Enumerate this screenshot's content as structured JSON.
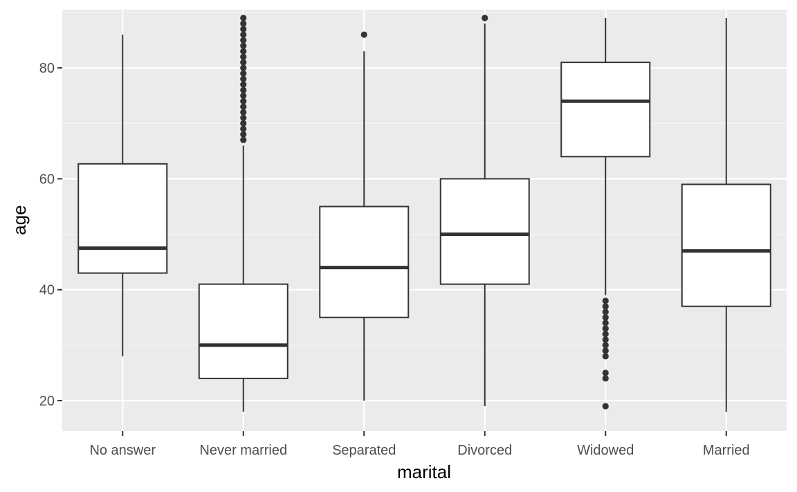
{
  "chart_data": {
    "type": "box",
    "xlabel": "marital",
    "ylabel": "age",
    "ylim": [
      14.5,
      90.5
    ],
    "yticks": [
      20,
      40,
      60,
      80
    ],
    "ytick_labels": [
      "20",
      "40",
      "60",
      "80"
    ],
    "grid": true,
    "categories": [
      "No answer",
      "Never married",
      "Separated",
      "Divorced",
      "Widowed",
      "Married"
    ],
    "boxes": [
      {
        "category": "No answer",
        "whisker_low": 28,
        "q1": 43,
        "median": 47.5,
        "q3": 62.7,
        "whisker_high": 86,
        "outliers": []
      },
      {
        "category": "Never married",
        "whisker_low": 18,
        "q1": 24,
        "median": 30,
        "q3": 41,
        "whisker_high": 66,
        "outliers": [
          67,
          68,
          69,
          70,
          71,
          72,
          73,
          74,
          75,
          76,
          77,
          78,
          79,
          80,
          81,
          82,
          83,
          84,
          85,
          86,
          87,
          88,
          89
        ]
      },
      {
        "category": "Separated",
        "whisker_low": 20,
        "q1": 35,
        "median": 44,
        "q3": 55,
        "whisker_high": 83,
        "outliers": [
          86
        ]
      },
      {
        "category": "Divorced",
        "whisker_low": 19,
        "q1": 41,
        "median": 50,
        "q3": 60,
        "whisker_high": 88,
        "outliers": [
          89
        ]
      },
      {
        "category": "Widowed",
        "whisker_low": 39,
        "q1": 64,
        "median": 74,
        "q3": 81,
        "whisker_high": 89,
        "outliers": [
          19,
          24,
          25,
          28,
          29,
          30,
          31,
          32,
          33,
          34,
          35,
          36,
          37,
          38
        ]
      },
      {
        "category": "Married",
        "whisker_low": 18,
        "q1": 37,
        "median": 47,
        "q3": 59,
        "whisker_high": 89,
        "outliers": []
      }
    ],
    "colors": {
      "panel_bg": "#ebebeb",
      "grid_major": "#ffffff",
      "grid_minor": "#f5f5f5",
      "box_fill": "#ffffff",
      "box_line": "#333333",
      "outlier": "#333333"
    }
  }
}
